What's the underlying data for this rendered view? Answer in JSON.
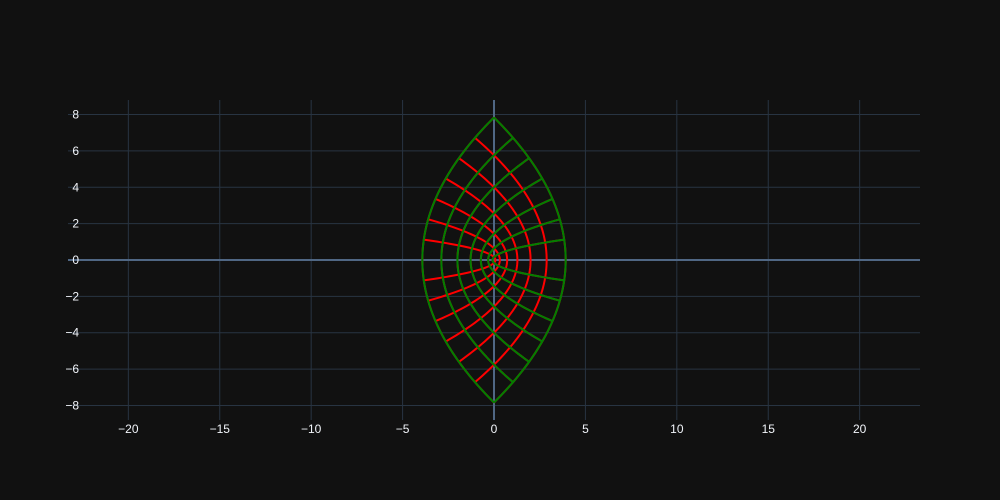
{
  "theme": {
    "background": "#111111",
    "grid_color": "#283442",
    "zero_line_color": "#506784",
    "tick_label_color": "#f2f5fa"
  },
  "chart_data": {
    "type": "line",
    "title": "",
    "xlabel": "",
    "ylabel": "",
    "xlim": [
      -23.3,
      23.3
    ],
    "ylim": [
      -8.8,
      8.8
    ],
    "x_ticks": [
      -20,
      -15,
      -10,
      -5,
      0,
      5,
      10,
      15,
      20
    ],
    "x_tick_labels": [
      "−20",
      "−15",
      "−10",
      "−5",
      "0",
      "5",
      "10",
      "15",
      "20"
    ],
    "y_ticks": [
      -8,
      -6,
      -4,
      -2,
      0,
      2,
      4,
      6,
      8
    ],
    "y_tick_labels": [
      "−8",
      "−6",
      "−4",
      "−2",
      "0",
      "2",
      "4",
      "6",
      "8"
    ],
    "grid": true,
    "legend": "none",
    "curve_family": "parabolic coordinate grid, x = (u² − v²)/2, y = u·v",
    "series": [
      {
        "color": "#ff0000",
        "fixed": "u",
        "levels": [
          0.4,
          0.8,
          1.2,
          1.6,
          2.0,
          2.4,
          2.8
        ],
        "param": "v",
        "param_range": [
          -2.8,
          2.8
        ]
      },
      {
        "color": "#ff0000",
        "fixed": "v",
        "levels": [
          0.4,
          0.8,
          1.2,
          1.6,
          2.0,
          2.4,
          2.8
        ],
        "param": "u",
        "param_range": [
          0,
          2.8
        ]
      },
      {
        "color": "#ff0000",
        "fixed": "v",
        "levels": [
          -0.4,
          -0.8,
          -1.2,
          -1.6,
          -2.0,
          -2.4,
          -2.8
        ],
        "param": "u",
        "param_range": [
          0,
          2.8
        ]
      },
      {
        "color": "#008000",
        "fixed": "u",
        "levels": [
          2.8
        ],
        "param": "v",
        "param_range": [
          -2.8,
          2.8
        ]
      },
      {
        "color": "#008000",
        "fixed": "v",
        "levels": [
          0.4,
          0.8,
          1.2,
          1.6,
          2.0,
          2.4,
          2.8,
          -0.4,
          -0.8,
          -1.2,
          -1.6,
          -2.0,
          -2.4,
          -2.8
        ],
        "param": "u",
        "param_range": [
          0,
          2.8
        ]
      }
    ]
  }
}
